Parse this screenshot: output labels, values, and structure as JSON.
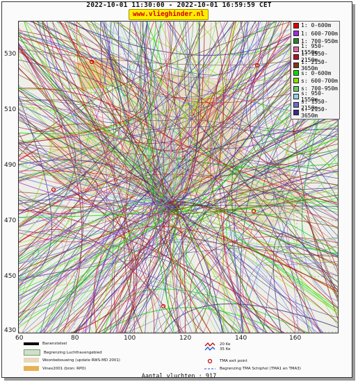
{
  "header": {
    "title": "2022-10-01 11:30:00 - 2022-10-01 16:59:59 CET",
    "site": "www.vlieghinder.nl"
  },
  "map": {
    "x_ticks": [
      "60",
      "80",
      "100",
      "120",
      "140",
      "160"
    ],
    "y_ticks": [
      "530",
      "510",
      "490",
      "470",
      "450",
      "430"
    ]
  },
  "legend": {
    "items": [
      {
        "label": "1: 0-600m",
        "color": "#e00000"
      },
      {
        "label": "1: 600-700m",
        "color": "#9b2fd9"
      },
      {
        "label": "1: 700-950m",
        "color": "#2f7f2f"
      },
      {
        "label": "1: 950-1550m",
        "color": "#e066a0"
      },
      {
        "label": "1: 1550-2150m",
        "color": "#b01030"
      },
      {
        "label": "1: 2150-3650m",
        "color": "#7a3a10"
      },
      {
        "label": "s: 0-600m",
        "color": "#00dd00"
      },
      {
        "label": "s: 600-700m",
        "color": "#88dd00"
      },
      {
        "label": "s: 700-950m",
        "color": "#66cc66"
      },
      {
        "label": "s: 950-1550m",
        "color": "#99ccee"
      },
      {
        "label": "s: 1550-2150m",
        "color": "#6a6ad0"
      },
      {
        "label": "s: 2150-3650m",
        "color": "#3a2a8a"
      }
    ]
  },
  "footer_legend": {
    "runway": "Banenstelsel",
    "airport_boundary": "Begrenzing Luchthavengebied",
    "residential": "Woonbebouwing (update RWS-MD 2001)",
    "vinex": "Vinex2001 (bron: RPD)",
    "kv_line1": "20 Ke",
    "kv_line2": "35 Ke",
    "tma_exit": "TMA exit point",
    "tma_boundary": "Begrenzing TMA Schiphol  (TMA1 en TMA3)"
  },
  "footer": {
    "flights": "Aantal vluchten : 917"
  }
}
